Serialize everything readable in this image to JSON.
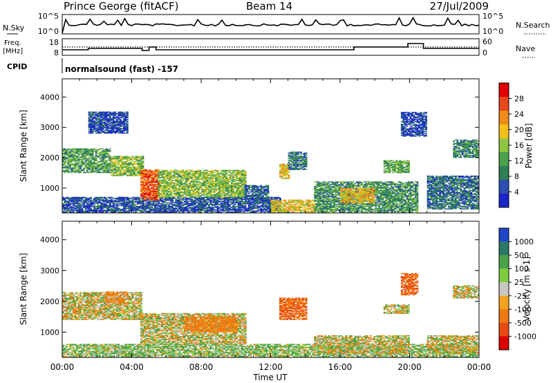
{
  "header": {
    "station": "Prince George (fitACF)",
    "beam": "Beam 14",
    "date": "27/Jul/2009"
  },
  "top_panels": {
    "nsky_label": "N.Sky",
    "nsky_ticks": [
      "10^5",
      "10^0"
    ],
    "nsearch_ticks": [
      "10^5",
      "10^0"
    ],
    "nsearch_label": "N.Search",
    "freq_label_1": "Freq.",
    "freq_label_2": "[MHz]",
    "freq_ticks": [
      "18",
      "8"
    ],
    "nave_ticks": [
      "60",
      "0"
    ],
    "nave_label": "Nave",
    "cpid_label": "CPID",
    "cpid_text": "normalsound (fast) -157"
  },
  "colors": {
    "power": [
      "#1c26c8",
      "#2a4fb0",
      "#2f7e55",
      "#4ba14b",
      "#8dc63f",
      "#f2c019",
      "#f28a1a",
      "#e8461c",
      "#e00000"
    ],
    "velocity": [
      "#2046c8",
      "#2a7a66",
      "#4aa247",
      "#7ccc3c",
      "#c8c8c0",
      "#f2a21c",
      "#ef7a12",
      "#e84a12",
      "#dd0000"
    ]
  },
  "chart_data": [
    {
      "type": "heatmap",
      "name": "power",
      "xlabel": "",
      "ylabel": "Slant Range [km]",
      "xlim": [
        "00:00",
        "24:00"
      ],
      "ylim": [
        180,
        4600
      ],
      "yticks": [
        1000,
        2000,
        3000,
        4000
      ],
      "xticks": [
        "00:00",
        "04:00",
        "08:00",
        "12:00",
        "16:00",
        "20:00",
        "00:00"
      ],
      "colorbar": {
        "label": "Power [dB]",
        "ticks": [
          "28",
          "24",
          "20",
          "16",
          "12",
          "8",
          "4"
        ],
        "range": [
          0,
          30
        ]
      },
      "regions": [
        {
          "t0": 0.0,
          "t1": 2.8,
          "r0": 1500,
          "r1": 2300,
          "value": 11
        },
        {
          "t0": 2.8,
          "t1": 4.6,
          "r0": 1400,
          "r1": 2050,
          "value": 14
        },
        {
          "t0": 1.5,
          "t1": 3.8,
          "r0": 2800,
          "r1": 3500,
          "value": 4
        },
        {
          "t0": 0.0,
          "t1": 12.5,
          "r0": 200,
          "r1": 700,
          "value": 5
        },
        {
          "t0": 4.5,
          "t1": 5.5,
          "r0": 600,
          "r1": 1600,
          "value": 24
        },
        {
          "t0": 5.5,
          "t1": 10.5,
          "r0": 700,
          "r1": 1600,
          "value": 14
        },
        {
          "t0": 10.5,
          "t1": 11.8,
          "r0": 500,
          "r1": 1100,
          "value": 6
        },
        {
          "t0": 12.0,
          "t1": 14.5,
          "r0": 200,
          "r1": 600,
          "value": 18
        },
        {
          "t0": 12.5,
          "t1": 13.0,
          "r0": 1300,
          "r1": 1800,
          "value": 18
        },
        {
          "t0": 13.0,
          "t1": 14.0,
          "r0": 1600,
          "r1": 2200,
          "value": 8
        },
        {
          "t0": 14.5,
          "t1": 20.5,
          "r0": 200,
          "r1": 1200,
          "value": 10
        },
        {
          "t0": 16.0,
          "t1": 18.0,
          "r0": 500,
          "r1": 1000,
          "value": 19
        },
        {
          "t0": 18.5,
          "t1": 20.0,
          "r0": 1500,
          "r1": 1900,
          "value": 12
        },
        {
          "t0": 19.5,
          "t1": 21.0,
          "r0": 2700,
          "r1": 3500,
          "value": 4
        },
        {
          "t0": 21.0,
          "t1": 24.0,
          "r0": 300,
          "r1": 1400,
          "value": 7
        },
        {
          "t0": 22.5,
          "t1": 24.0,
          "r0": 2000,
          "r1": 2600,
          "value": 9
        }
      ]
    },
    {
      "type": "heatmap",
      "name": "velocity",
      "xlabel": "Time UT",
      "ylabel": "Slant Range [km]",
      "xlim": [
        "00:00",
        "24:00"
      ],
      "ylim": [
        180,
        4600
      ],
      "yticks": [
        1000,
        2000,
        3000,
        4000
      ],
      "xticks": [
        "00:00",
        "04:00",
        "08:00",
        "12:00",
        "16:00",
        "20:00",
        "00:00"
      ],
      "colorbar": {
        "label": "Velocity [m s-1]",
        "ticks": [
          "1000",
          "500",
          "100",
          "25",
          "-25",
          "-100",
          "-500",
          "-1000"
        ],
        "range": [
          -1200,
          1200
        ]
      },
      "regions": [
        {
          "t0": 0.0,
          "t1": 4.6,
          "r0": 1400,
          "r1": 2300,
          "value": 0
        },
        {
          "t0": 2.5,
          "t1": 3.8,
          "r0": 1900,
          "r1": 2300,
          "value": -120
        },
        {
          "t0": 4.5,
          "t1": 10.5,
          "r0": 600,
          "r1": 1600,
          "value": 0
        },
        {
          "t0": 7.0,
          "t1": 10.0,
          "r0": 1000,
          "r1": 1500,
          "value": -150
        },
        {
          "t0": 0.0,
          "t1": 24.0,
          "r0": 200,
          "r1": 600,
          "value": 60
        },
        {
          "t0": 12.5,
          "t1": 14.0,
          "r0": 1400,
          "r1": 2100,
          "value": -300
        },
        {
          "t0": 14.5,
          "t1": 20.0,
          "r0": 300,
          "r1": 900,
          "value": 0
        },
        {
          "t0": 18.5,
          "t1": 20.0,
          "r0": 1600,
          "r1": 1900,
          "value": 0
        },
        {
          "t0": 19.5,
          "t1": 20.5,
          "r0": 2200,
          "r1": 2900,
          "value": -300
        },
        {
          "t0": 22.5,
          "t1": 24.0,
          "r0": 2100,
          "r1": 2500,
          "value": 0
        },
        {
          "t0": 21.0,
          "t1": 24.0,
          "r0": 300,
          "r1": 900,
          "value": 0
        }
      ]
    }
  ],
  "footer": {
    "time_label": "Time UT"
  }
}
